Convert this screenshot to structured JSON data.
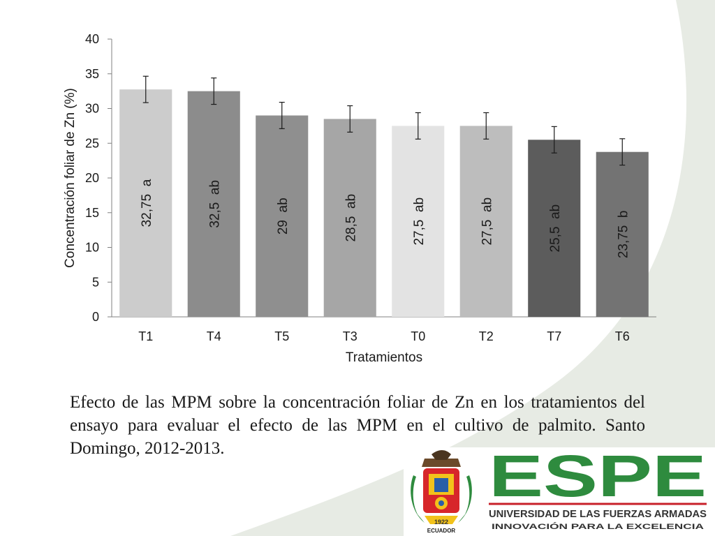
{
  "chart_data": {
    "type": "bar",
    "categories": [
      "T1",
      "T4",
      "T5",
      "T3",
      "T0",
      "T2",
      "T7",
      "T6"
    ],
    "values": [
      32.75,
      32.5,
      29,
      28.5,
      27.5,
      27.5,
      25.5,
      23.75
    ],
    "error": [
      1.9,
      1.9,
      1.9,
      1.9,
      1.9,
      1.9,
      1.9,
      1.9
    ],
    "bar_labels": [
      "32,75  a",
      "32,5  ab",
      "29  ab",
      "28,5  ab",
      "27,5  ab",
      "27,5  ab",
      "25,5  ab",
      "23,75  b"
    ],
    "bar_colors": [
      "#cccccc",
      "#8c8c8c",
      "#8f8f8f",
      "#a6a6a6",
      "#e3e3e3",
      "#bdbdbd",
      "#5c5c5c",
      "#737373"
    ],
    "xlabel": "Tratamientos",
    "ylabel": "Concentración foliar de Zn (%)",
    "ylim": [
      0,
      40
    ],
    "yticks": [
      0,
      5,
      10,
      15,
      20,
      25,
      30,
      35,
      40
    ],
    "grid": false,
    "legend": "none"
  },
  "caption": "Efecto de las MPM sobre la concentración foliar de Zn en los tratamientos del ensayo para evaluar el efecto de las MPM en el cultivo de palmito. Santo Domingo, 2012-2013.",
  "logo": {
    "name": "ESPE",
    "subtitle": "UNIVERSIDAD DE LAS FUERZAS ARMADAS",
    "tagline": "INNOVACIÓN PARA LA EXCELENCIA",
    "year": "1922",
    "country": "ECUADOR",
    "brand_color": "#2e8b3e"
  },
  "colors": {
    "background_swoosh": "#e7ebe4",
    "axis": "#808080",
    "text": "#1a1a1a"
  }
}
